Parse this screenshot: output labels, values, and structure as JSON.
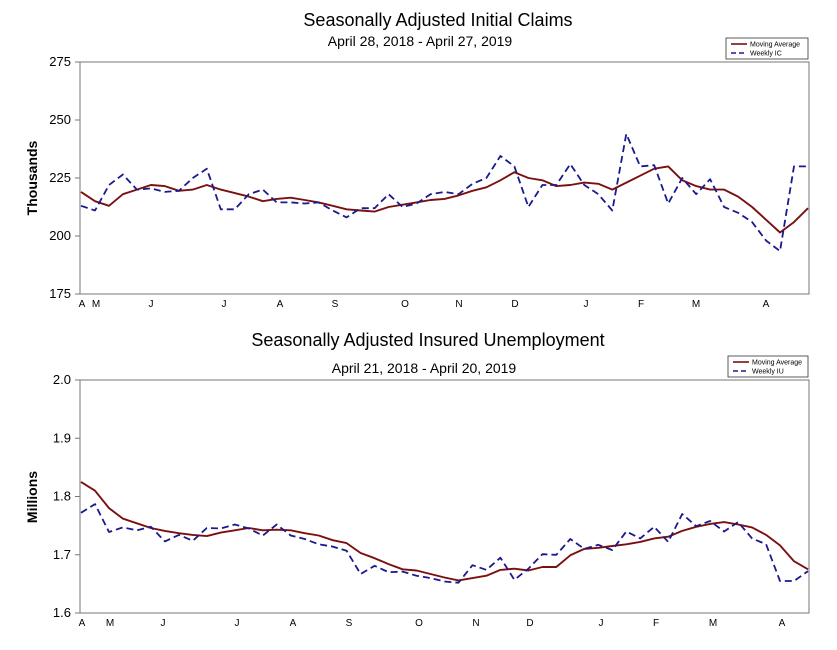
{
  "chart_data": [
    {
      "type": "line",
      "title": "Seasonally Adjusted Initial Claims",
      "subtitle": "April 28, 2018 - April 27, 2019",
      "ylabel": "Thousands",
      "xlabel": "",
      "ylim": [
        175,
        275
      ],
      "yticks": [
        "175",
        "200",
        "225",
        "250",
        "275"
      ],
      "xtick_labels": [
        "A",
        "M",
        "J",
        "J",
        "A",
        "S",
        "O",
        "N",
        "D",
        "J",
        "F",
        "M",
        "A"
      ],
      "grid": false,
      "legend_position": "top-right",
      "series": [
        {
          "name": "Moving Average",
          "color": "#7a1010",
          "style": "solid",
          "values": [
            219,
            215,
            213,
            218,
            220,
            222,
            221.5,
            219.5,
            220,
            222,
            220,
            218.5,
            217,
            215,
            216,
            216.5,
            215.5,
            214.5,
            213,
            211.5,
            211,
            210.5,
            212.5,
            213.5,
            214.5,
            215.5,
            216,
            217.5,
            219.5,
            221,
            224,
            227.5,
            225,
            224,
            221.5,
            222,
            223,
            222.5,
            220,
            223,
            226,
            229,
            230,
            224,
            221.5,
            220,
            220,
            217,
            212.5,
            207,
            201.5,
            206,
            212
          ]
        },
        {
          "name": "Weekly IC",
          "color": "#1a1a8c",
          "style": "dashed",
          "values": [
            213,
            211,
            222,
            226.5,
            220,
            220.5,
            219,
            219.5,
            225,
            229,
            211.5,
            211.5,
            218,
            220,
            214.5,
            214.5,
            214,
            214.5,
            211,
            208,
            212,
            212,
            218,
            212.5,
            214,
            218,
            219,
            218,
            222.5,
            225,
            234.5,
            230,
            212.5,
            222,
            222,
            231,
            222,
            218,
            211,
            244,
            230,
            230.5,
            214,
            225,
            218,
            224.5,
            212.5,
            210,
            206,
            198,
            193.5,
            230,
            230
          ]
        }
      ]
    },
    {
      "type": "line",
      "title": "Seasonally Adjusted Insured Unemployment",
      "subtitle": "April 21, 2018 - April 20, 2019",
      "ylabel": "Millions",
      "xlabel": "",
      "ylim": [
        1.6,
        2.0
      ],
      "yticks": [
        "1.6",
        "1.7",
        "1.8",
        "1.9",
        "2.0"
      ],
      "xtick_labels": [
        "A",
        "M",
        "J",
        "J",
        "A",
        "S",
        "O",
        "N",
        "D",
        "J",
        "F",
        "M",
        "A"
      ],
      "grid": false,
      "legend_position": "top-right",
      "series": [
        {
          "name": "Moving Average",
          "color": "#7a1010",
          "style": "solid",
          "values": [
            1.825,
            1.81,
            1.78,
            1.762,
            1.754,
            1.746,
            1.741,
            1.737,
            1.734,
            1.732,
            1.738,
            1.742,
            1.746,
            1.742,
            1.743,
            1.742,
            1.737,
            1.733,
            1.725,
            1.72,
            1.703,
            1.694,
            1.684,
            1.675,
            1.673,
            1.667,
            1.661,
            1.656,
            1.66,
            1.664,
            1.674,
            1.676,
            1.673,
            1.679,
            1.679,
            1.699,
            1.71,
            1.712,
            1.715,
            1.718,
            1.722,
            1.728,
            1.731,
            1.741,
            1.748,
            1.753,
            1.756,
            1.752,
            1.747,
            1.734,
            1.716,
            1.689,
            1.675
          ]
        },
        {
          "name": "Weekly IU",
          "color": "#1a1a8c",
          "style": "dashed",
          "values": [
            1.772,
            1.787,
            1.739,
            1.747,
            1.742,
            1.748,
            1.723,
            1.734,
            1.724,
            1.746,
            1.745,
            1.752,
            1.745,
            1.733,
            1.752,
            1.733,
            1.727,
            1.718,
            1.714,
            1.707,
            1.667,
            1.681,
            1.67,
            1.671,
            1.664,
            1.66,
            1.654,
            1.652,
            1.682,
            1.674,
            1.695,
            1.657,
            1.676,
            1.701,
            1.7,
            1.727,
            1.71,
            1.717,
            1.708,
            1.74,
            1.728,
            1.748,
            1.722,
            1.77,
            1.749,
            1.758,
            1.74,
            1.756,
            1.728,
            1.718,
            1.655,
            1.655,
            1.672
          ]
        }
      ]
    }
  ]
}
